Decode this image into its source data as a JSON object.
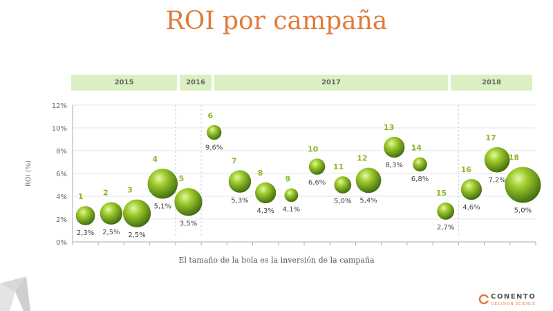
{
  "title": "ROI por campaña",
  "footnote": "El tamaño de la bola es la inversión de la campaña",
  "brand": {
    "name": "CONENTO",
    "tagline": "DECISION SCIENCE",
    "accent": "#e07a3a"
  },
  "colors": {
    "bubble_light": "#b8e04a",
    "bubble_dark": "#3f6b0e",
    "campaign_label": "#8db52a",
    "value_label": "#444444",
    "year_band": "#dcefc2"
  },
  "chart_data": {
    "type": "scatter",
    "title": "ROI por campaña",
    "xlabel": "El tamaño de la bola es la inversión de la campaña",
    "ylabel": "ROI (%)",
    "ylim": [
      0,
      12
    ],
    "yticks": [
      "0%",
      "2%",
      "4%",
      "6%",
      "8%",
      "10%",
      "12%"
    ],
    "year_groups": [
      {
        "year": "2015",
        "campaigns": [
          1,
          2,
          3,
          4
        ]
      },
      {
        "year": "2016",
        "campaigns": [
          5
        ]
      },
      {
        "year": "2017",
        "campaigns": [
          6,
          7,
          8,
          9,
          10,
          11,
          12,
          13,
          14,
          15
        ]
      },
      {
        "year": "2018",
        "campaigns": [
          16,
          17,
          18
        ]
      }
    ],
    "points": [
      {
        "campaign": "1",
        "roi": 2.3,
        "label": "2,3%",
        "size": 2
      },
      {
        "campaign": "2",
        "roi": 2.5,
        "label": "2,5%",
        "size": 3
      },
      {
        "campaign": "3",
        "roi": 2.5,
        "label": "2,5%",
        "size": 5
      },
      {
        "campaign": "4",
        "roi": 5.1,
        "label": "5,1%",
        "size": 6
      },
      {
        "campaign": "5",
        "roi": 3.5,
        "label": "3,5%",
        "size": 5
      },
      {
        "campaign": "6",
        "roi": 9.6,
        "label": "9,6%",
        "size": 1
      },
      {
        "campaign": "7",
        "roi": 5.3,
        "label": "5,3%",
        "size": 3
      },
      {
        "campaign": "8",
        "roi": 4.3,
        "label": "4,3%",
        "size": 2.5
      },
      {
        "campaign": "9",
        "roi": 4.1,
        "label": "4,1%",
        "size": 0.8
      },
      {
        "campaign": "10",
        "roi": 6.6,
        "label": "6,6%",
        "size": 1.3
      },
      {
        "campaign": "11",
        "roi": 5.0,
        "label": "5,0%",
        "size": 1.5
      },
      {
        "campaign": "12",
        "roi": 5.4,
        "label": "5,4%",
        "size": 4
      },
      {
        "campaign": "13",
        "roi": 8.3,
        "label": "8,3%",
        "size": 2.5
      },
      {
        "campaign": "14",
        "roi": 6.8,
        "label": "6,8%",
        "size": 0.9
      },
      {
        "campaign": "15",
        "roi": 2.7,
        "label": "2,7%",
        "size": 1.5
      },
      {
        "campaign": "16",
        "roi": 4.6,
        "label": "4,6%",
        "size": 2.5
      },
      {
        "campaign": "17",
        "roi": 7.2,
        "label": "7,2%",
        "size": 4
      },
      {
        "campaign": "18",
        "roi": 5.0,
        "label": "5,0%",
        "size": 9
      }
    ]
  }
}
